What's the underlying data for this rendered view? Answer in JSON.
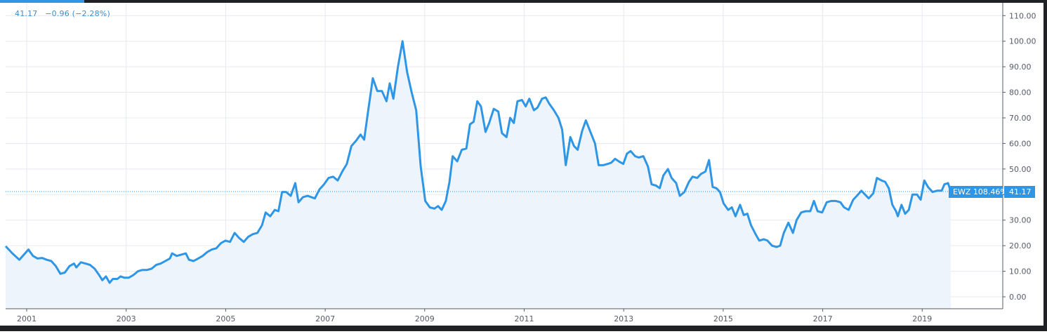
{
  "header": {
    "last_value": "41.17",
    "change": "−0.96 (−2.28%)"
  },
  "price_label": {
    "symbol_pct": "EWZ 108.46%",
    "value": "41.17"
  },
  "colors": {
    "line": "#2f96e6",
    "fill": "#eef4fc",
    "grid": "#e6eaf0",
    "axis": "#555b66",
    "label_bg": "#2f96e6",
    "frame": "#202124"
  },
  "chart_data": {
    "type": "area",
    "title": "",
    "xlabel": "",
    "ylabel": "",
    "symbol": "EWZ",
    "x_ticks": [
      "2001",
      "2003",
      "2005",
      "2007",
      "2009",
      "2011",
      "2013",
      "2015",
      "2017",
      "2019"
    ],
    "y_ticks": [
      "0.00",
      "10.00",
      "20.00",
      "30.00",
      "40.00",
      "50.00",
      "60.00",
      "70.00",
      "80.00",
      "90.00",
      "100.00",
      "110.00"
    ],
    "ylim": [
      -2,
      113
    ],
    "xlim": [
      2000.6,
      2020.6
    ],
    "current_value": 41.17,
    "grid": true,
    "series": [
      {
        "values": [
          [
            2000.6,
            19.8
          ],
          [
            2000.75,
            17
          ],
          [
            2000.9,
            14.5
          ],
          [
            2001.1,
            18.5
          ],
          [
            2001.2,
            16
          ],
          [
            2001.3,
            15
          ],
          [
            2001.4,
            15.2
          ],
          [
            2001.5,
            14.5
          ],
          [
            2001.6,
            14
          ],
          [
            2001.7,
            12
          ],
          [
            2001.8,
            9
          ],
          [
            2001.9,
            9.5
          ],
          [
            2002.0,
            12
          ],
          [
            2002.1,
            13
          ],
          [
            2002.15,
            11.5
          ],
          [
            2002.25,
            13.5
          ],
          [
            2002.35,
            13
          ],
          [
            2002.45,
            12.5
          ],
          [
            2002.55,
            11
          ],
          [
            2002.65,
            8.5
          ],
          [
            2002.72,
            6.5
          ],
          [
            2002.8,
            8
          ],
          [
            2002.88,
            5.5
          ],
          [
            2002.95,
            7
          ],
          [
            2003.05,
            7
          ],
          [
            2003.12,
            8
          ],
          [
            2003.2,
            7.5
          ],
          [
            2003.3,
            7.5
          ],
          [
            2003.4,
            8.5
          ],
          [
            2003.5,
            10
          ],
          [
            2003.6,
            10.5
          ],
          [
            2003.7,
            10.5
          ],
          [
            2003.8,
            11
          ],
          [
            2003.9,
            12.5
          ],
          [
            2004.0,
            13
          ],
          [
            2004.1,
            14
          ],
          [
            2004.2,
            15
          ],
          [
            2004.25,
            17
          ],
          [
            2004.35,
            16
          ],
          [
            2004.45,
            16.5
          ],
          [
            2004.55,
            17
          ],
          [
            2004.62,
            14.5
          ],
          [
            2004.72,
            14
          ],
          [
            2004.82,
            15
          ],
          [
            2004.92,
            16
          ],
          [
            2005.02,
            17.5
          ],
          [
            2005.12,
            18.5
          ],
          [
            2005.22,
            19
          ],
          [
            2005.32,
            21
          ],
          [
            2005.42,
            22
          ],
          [
            2005.52,
            21.5
          ],
          [
            2005.62,
            25
          ],
          [
            2005.72,
            23
          ],
          [
            2005.82,
            21.5
          ],
          [
            2005.92,
            23.5
          ],
          [
            2006.02,
            24.5
          ],
          [
            2006.12,
            25
          ],
          [
            2006.22,
            28
          ],
          [
            2006.3,
            33
          ],
          [
            2006.4,
            31.5
          ],
          [
            2006.5,
            34
          ],
          [
            2006.58,
            33.5
          ],
          [
            2006.66,
            41
          ],
          [
            2006.75,
            41
          ],
          [
            2006.85,
            39.5
          ],
          [
            2006.95,
            44.5
          ],
          [
            2007.02,
            37
          ],
          [
            2007.12,
            39
          ],
          [
            2007.22,
            39.5
          ],
          [
            2007.3,
            39
          ],
          [
            2007.38,
            38.5
          ],
          [
            2007.48,
            42
          ],
          [
            2007.58,
            44
          ],
          [
            2007.68,
            46.5
          ],
          [
            2007.78,
            47
          ],
          [
            2007.88,
            45.5
          ],
          [
            2007.98,
            49
          ],
          [
            2008.08,
            52
          ],
          [
            2008.18,
            59
          ],
          [
            2008.28,
            61
          ],
          [
            2008.38,
            63.5
          ],
          [
            2008.46,
            61.5
          ],
          [
            2008.55,
            73
          ],
          [
            2008.65,
            85.5
          ],
          [
            2008.75,
            80.5
          ],
          [
            2008.85,
            80.5
          ],
          [
            2008.95,
            76.5
          ],
          [
            2009.02,
            83.5
          ],
          [
            2009.1,
            77.5
          ],
          [
            2009.2,
            90
          ],
          [
            2009.3,
            100
          ],
          [
            2009.4,
            88
          ],
          [
            2009.5,
            80
          ],
          [
            2009.6,
            73
          ],
          [
            2009.7,
            51
          ],
          [
            2009.8,
            37.5
          ],
          [
            2009.9,
            35
          ],
          [
            2010.0,
            34.5
          ],
          [
            2010.08,
            35.5
          ],
          [
            2010.16,
            34
          ],
          [
            2010.25,
            37.5
          ],
          [
            2010.33,
            45
          ],
          [
            2010.4,
            55
          ],
          [
            2010.5,
            53
          ],
          [
            2010.6,
            57.5
          ],
          [
            2010.7,
            58
          ],
          [
            2010.78,
            67.5
          ],
          [
            2010.86,
            68.5
          ],
          [
            2010.94,
            76.5
          ],
          [
            2011.02,
            74.5
          ],
          [
            2011.12,
            64.5
          ],
          [
            2011.2,
            68
          ],
          [
            2011.3,
            73.5
          ],
          [
            2011.4,
            72.5
          ],
          [
            2011.48,
            64
          ],
          [
            2011.58,
            62.5
          ],
          [
            2011.66,
            70
          ],
          [
            2011.74,
            68
          ],
          [
            2011.82,
            76.5
          ],
          [
            2011.92,
            77
          ],
          [
            2012.0,
            74.5
          ],
          [
            2012.08,
            77.5
          ],
          [
            2012.18,
            73
          ],
          [
            2012.26,
            74
          ],
          [
            2012.36,
            77.5
          ],
          [
            2012.44,
            78
          ],
          [
            2012.52,
            75.5
          ],
          [
            2012.62,
            73
          ],
          [
            2012.72,
            70
          ],
          [
            2012.8,
            65.5
          ],
          [
            2012.88,
            51.5
          ],
          [
            2012.98,
            62.5
          ],
          [
            2013.06,
            59
          ],
          [
            2013.14,
            57.5
          ],
          [
            2013.24,
            65
          ],
          [
            2013.32,
            69
          ],
          [
            2013.42,
            64.5
          ],
          [
            2013.52,
            60
          ],
          [
            2013.6,
            51.5
          ],
          [
            2013.7,
            51.5
          ],
          [
            2013.8,
            52
          ],
          [
            2013.88,
            52.5
          ],
          [
            2013.96,
            54
          ],
          [
            2014.04,
            53
          ],
          [
            2014.14,
            52
          ],
          [
            2014.22,
            56
          ],
          [
            2014.3,
            57
          ],
          [
            2014.4,
            55
          ],
          [
            2014.48,
            54.5
          ],
          [
            2014.58,
            55
          ],
          [
            2014.68,
            51
          ],
          [
            2014.76,
            44
          ],
          [
            2014.86,
            43.5
          ],
          [
            2014.94,
            42.5
          ],
          [
            2015.02,
            47.5
          ],
          [
            2015.12,
            50
          ],
          [
            2015.2,
            46.5
          ],
          [
            2015.3,
            44.5
          ],
          [
            2015.38,
            39.5
          ],
          [
            2015.48,
            41
          ],
          [
            2015.58,
            45
          ],
          [
            2015.66,
            47
          ],
          [
            2015.76,
            46.5
          ],
          [
            2015.84,
            48
          ],
          [
            2015.94,
            49
          ],
          [
            2016.02,
            53.5
          ],
          [
            2016.1,
            43
          ],
          [
            2016.18,
            42.5
          ],
          [
            2016.26,
            41
          ],
          [
            2016.34,
            36.5
          ],
          [
            2016.44,
            34
          ],
          [
            2016.52,
            35
          ],
          [
            2016.6,
            31.5
          ],
          [
            2016.7,
            36
          ],
          [
            2016.78,
            32
          ],
          [
            2016.86,
            32.5
          ],
          [
            2016.94,
            28
          ],
          [
            2017.04,
            24.5
          ],
          [
            2017.12,
            22
          ],
          [
            2017.22,
            22.5
          ],
          [
            2017.3,
            22
          ],
          [
            2017.4,
            20
          ],
          [
            2017.5,
            19.5
          ],
          [
            2017.58,
            20
          ],
          [
            2017.66,
            25
          ],
          [
            2017.76,
            29
          ],
          [
            2017.86,
            25
          ],
          [
            2017.94,
            30
          ],
          [
            2018.04,
            33
          ],
          [
            2018.14,
            33.5
          ],
          [
            2018.24,
            33.5
          ],
          [
            2018.32,
            37.5
          ],
          [
            2018.4,
            33.5
          ],
          [
            2018.5,
            33
          ],
          [
            2018.6,
            37
          ],
          [
            2018.7,
            37.5
          ],
          [
            2018.8,
            37.5
          ],
          [
            2018.9,
            37
          ],
          [
            2018.98,
            35
          ],
          [
            2019.08,
            34
          ],
          [
            2019.18,
            38
          ],
          [
            2019.26,
            39.5
          ],
          [
            2019.36,
            41.5
          ],
          [
            2019.44,
            40
          ],
          [
            2019.52,
            38.5
          ],
          [
            2019.62,
            40.5
          ],
          [
            2019.7,
            46.5
          ],
          [
            2019.8,
            45.5
          ],
          [
            2019.88,
            45
          ],
          [
            2019.96,
            42.5
          ],
          [
            2020.04,
            36
          ],
          [
            2020.12,
            33.5
          ],
          [
            2020.16,
            31.5
          ],
          [
            2020.24,
            36
          ],
          [
            2020.32,
            32.5
          ],
          [
            2020.4,
            34
          ],
          [
            2020.48,
            40
          ],
          [
            2020.58,
            40
          ],
          [
            2020.66,
            38
          ],
          [
            2020.74,
            45.5
          ],
          [
            2020.82,
            43
          ],
          [
            2020.92,
            41
          ],
          [
            2021.02,
            41.5
          ],
          [
            2021.12,
            41.5
          ],
          [
            2021.18,
            44
          ],
          [
            2021.26,
            44.5
          ],
          [
            2021.32,
            41.2
          ]
        ]
      }
    ]
  }
}
